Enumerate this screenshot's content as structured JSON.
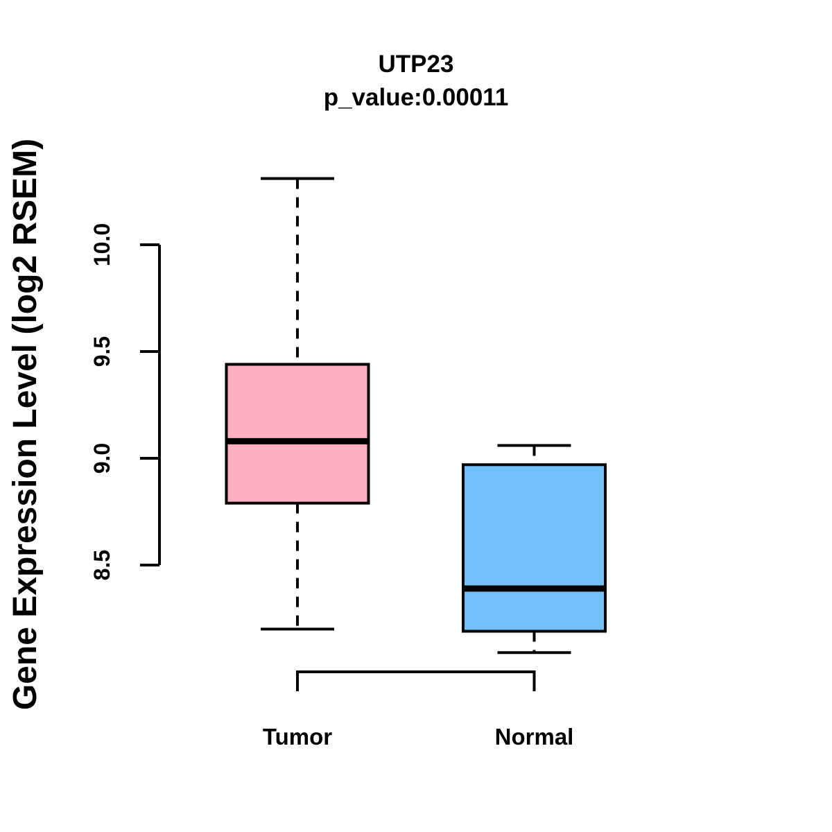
{
  "chart_data": {
    "type": "boxplot",
    "title": "UTP23",
    "subtitle": "p_value:0.00011",
    "ylabel": "Gene Expression Level (log2 RSEM)",
    "xlabel": "",
    "categories": [
      "Tumor",
      "Normal"
    ],
    "yticks": [
      "8.5",
      "9.0",
      "9.5",
      "10.0"
    ],
    "axis_tick_range": [
      8.5,
      10.0
    ],
    "grid": false,
    "legend_position": "none",
    "series": [
      {
        "name": "Tumor",
        "box_color": "#FFAFC0",
        "whisker_low": 8.2,
        "q1": 8.79,
        "median": 9.08,
        "q3": 9.44,
        "whisker_high": 10.31
      },
      {
        "name": "Normal",
        "box_color": "#74C0FA",
        "whisker_low": 8.09,
        "q1": 8.19,
        "median": 8.39,
        "q3": 8.97,
        "whisker_high": 9.06
      }
    ],
    "comparison_bracket": {
      "between": [
        "Tumor",
        "Normal"
      ],
      "at_value": 8.0
    }
  },
  "colors": {
    "line": "#000000",
    "text": "#000000",
    "background": "#FFFFFF"
  }
}
